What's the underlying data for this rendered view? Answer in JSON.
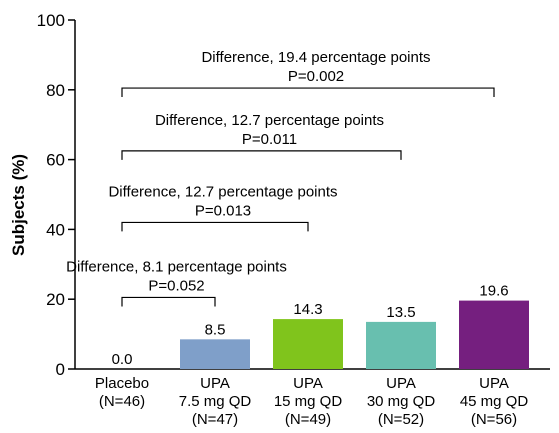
{
  "chart_data": {
    "type": "bar",
    "ylabel": "Subjects (%)",
    "ylim": [
      0,
      100
    ],
    "yticks": [
      "0",
      "20",
      "40",
      "60",
      "80",
      "100"
    ],
    "grid": false,
    "categories": [
      [
        "Placebo",
        "(N=46)"
      ],
      [
        "UPA",
        "7.5 mg QD",
        "(N=47)"
      ],
      [
        "UPA",
        "15 mg QD",
        "(N=49)"
      ],
      [
        "UPA",
        "30 mg QD",
        "(N=52)"
      ],
      [
        "UPA",
        "45 mg QD",
        "(N=56)"
      ]
    ],
    "values": [
      0.0,
      8.5,
      14.3,
      13.5,
      19.6
    ],
    "value_labels": [
      "0.0",
      "8.5",
      "14.3",
      "13.5",
      "19.6"
    ],
    "bar_colors": [
      "#ffffff",
      "#7f9fc9",
      "#80c41c",
      "#68bfaf",
      "#751f7f"
    ],
    "comparisons": [
      {
        "from": 0,
        "to": 1,
        "difference": "Difference, 8.1 percentage points",
        "p": "P=0.052",
        "level": 20.5
      },
      {
        "from": 0,
        "to": 2,
        "difference": "Difference, 12.7 percentage points",
        "p": "P=0.013",
        "level": 42
      },
      {
        "from": 0,
        "to": 3,
        "difference": "Difference, 12.7 percentage points",
        "p": "P=0.011",
        "level": 62.5
      },
      {
        "from": 0,
        "to": 4,
        "difference": "Difference, 19.4 percentage points",
        "p": "P=0.002",
        "level": 80.5
      }
    ]
  }
}
